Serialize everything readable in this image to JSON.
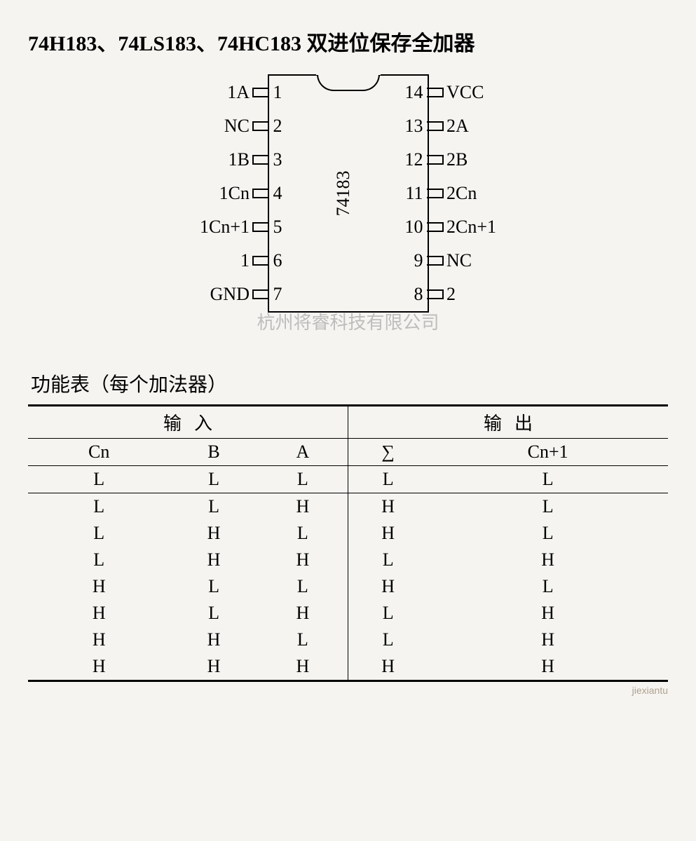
{
  "title": "74H183、74LS183、74HC183  双进位保存全加器",
  "chip": {
    "name": "74183",
    "left_pins": [
      {
        "num": "1",
        "label": "1A"
      },
      {
        "num": "2",
        "label": "NC"
      },
      {
        "num": "3",
        "label": "1B"
      },
      {
        "num": "4",
        "label": "1Cn"
      },
      {
        "num": "5",
        "label": "1Cn+1"
      },
      {
        "num": "6",
        "label": "1"
      },
      {
        "num": "7",
        "label": "GND"
      }
    ],
    "right_pins": [
      {
        "num": "14",
        "label": "VCC"
      },
      {
        "num": "13",
        "label": "2A"
      },
      {
        "num": "12",
        "label": "2B"
      },
      {
        "num": "11",
        "label": "2Cn"
      },
      {
        "num": "10",
        "label": "2Cn+1"
      },
      {
        "num": "9",
        "label": "NC"
      },
      {
        "num": "8",
        "label": "2"
      }
    ]
  },
  "watermark": "杭州将睿科技有限公司",
  "table": {
    "caption": "功能表（每个加法器）",
    "group_input": "输入",
    "group_output": "输出",
    "columns": [
      "Cn",
      "B",
      "A",
      "∑",
      "Cn+1"
    ],
    "rows": [
      [
        "L",
        "L",
        "L",
        "L",
        "L"
      ],
      [
        "L",
        "L",
        "H",
        "H",
        "L"
      ],
      [
        "L",
        "H",
        "L",
        "H",
        "L"
      ],
      [
        "L",
        "H",
        "H",
        "L",
        "H"
      ],
      [
        "H",
        "L",
        "L",
        "H",
        "L"
      ],
      [
        "H",
        "L",
        "H",
        "L",
        "H"
      ],
      [
        "H",
        "H",
        "L",
        "L",
        "H"
      ],
      [
        "H",
        "H",
        "H",
        "H",
        "H"
      ]
    ],
    "border_color": "#000000",
    "font_size": 26
  },
  "footer": "jiexiantu"
}
